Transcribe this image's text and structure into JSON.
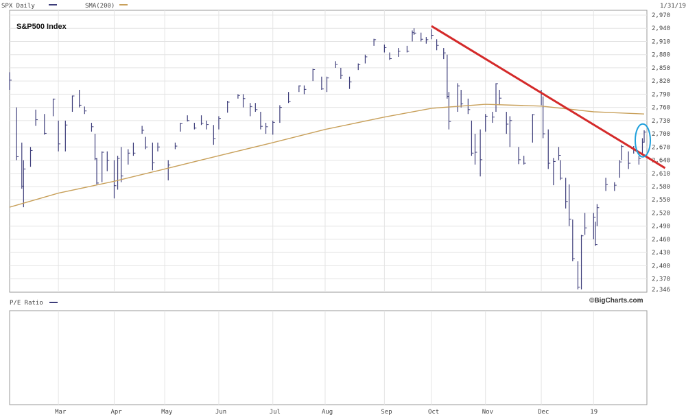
{
  "header": {
    "series1_label": "SPX Daily",
    "series2_label": "SMA(200)",
    "date_label": "1/31/19",
    "series1_color": "#3d3d7a",
    "series2_color": "#c8a05a"
  },
  "lower_panel": {
    "label": "P/E Ratio",
    "label_color": "#3d3d7a"
  },
  "credit": "©BigCharts.com",
  "chart_data": {
    "type": "line",
    "title": "S&P500 Index",
    "months": [
      "Mar",
      "Apr",
      "May",
      "Jun",
      "Jul",
      "Aug",
      "Sep",
      "Oct",
      "Nov",
      "Dec",
      "19"
    ],
    "yticks": [
      2970,
      2940,
      2910,
      2880,
      2850,
      2820,
      2790,
      2760,
      2730,
      2700,
      2670,
      2640,
      2610,
      2580,
      2550,
      2520,
      2490,
      2460,
      2430,
      2400,
      2370,
      2346
    ],
    "ylim": [
      2346,
      2970
    ],
    "grid": true,
    "series": [
      {
        "name": "SPX Daily",
        "style": "ohlc-bars",
        "color": "#3d3d7a",
        "points": [
          [
            "2018-02-01",
            2822,
            2840,
            2800
          ],
          [
            "2018-02-05",
            2648,
            2760,
            2640
          ],
          [
            "2018-02-08",
            2581,
            2680,
            2575
          ],
          [
            "2018-02-09",
            2620,
            2640,
            2533
          ],
          [
            "2018-02-13",
            2662,
            2670,
            2625
          ],
          [
            "2018-02-16",
            2732,
            2755,
            2718
          ],
          [
            "2018-02-21",
            2701,
            2745,
            2698
          ],
          [
            "2018-02-26",
            2779,
            2780,
            2740
          ],
          [
            "2018-03-01",
            2677,
            2730,
            2660
          ],
          [
            "2018-03-05",
            2720,
            2730,
            2660
          ],
          [
            "2018-03-09",
            2786,
            2787,
            2750
          ],
          [
            "2018-03-13",
            2765,
            2800,
            2760
          ],
          [
            "2018-03-16",
            2752,
            2762,
            2745
          ],
          [
            "2018-03-20",
            2716,
            2725,
            2705
          ],
          [
            "2018-03-22",
            2643,
            2700,
            2640
          ],
          [
            "2018-03-23",
            2588,
            2645,
            2585
          ],
          [
            "2018-03-26",
            2658,
            2660,
            2590
          ],
          [
            "2018-03-29",
            2640,
            2660,
            2615
          ],
          [
            "2018-04-02",
            2582,
            2640,
            2553
          ],
          [
            "2018-04-04",
            2644,
            2650,
            2573
          ],
          [
            "2018-04-06",
            2604,
            2670,
            2590
          ],
          [
            "2018-04-10",
            2656,
            2665,
            2630
          ],
          [
            "2018-04-13",
            2656,
            2680,
            2650
          ],
          [
            "2018-04-18",
            2708,
            2718,
            2700
          ],
          [
            "2018-04-20",
            2670,
            2693,
            2665
          ],
          [
            "2018-04-24",
            2634,
            2680,
            2617
          ],
          [
            "2018-04-27",
            2670,
            2680,
            2660
          ],
          [
            "2018-05-03",
            2629,
            2640,
            2594
          ],
          [
            "2018-05-07",
            2672,
            2680,
            2665
          ],
          [
            "2018-05-10",
            2723,
            2725,
            2705
          ],
          [
            "2018-05-14",
            2730,
            2742,
            2728
          ],
          [
            "2018-05-18",
            2713,
            2725,
            2710
          ],
          [
            "2018-05-22",
            2724,
            2742,
            2720
          ],
          [
            "2018-05-25",
            2721,
            2730,
            2710
          ],
          [
            "2018-05-29",
            2689,
            2720,
            2675
          ],
          [
            "2018-06-01",
            2735,
            2740,
            2710
          ],
          [
            "2018-06-06",
            2772,
            2775,
            2748
          ],
          [
            "2018-06-12",
            2787,
            2790,
            2780
          ],
          [
            "2018-06-15",
            2780,
            2790,
            2760
          ],
          [
            "2018-06-19",
            2762,
            2770,
            2740
          ],
          [
            "2018-06-22",
            2755,
            2770,
            2750
          ],
          [
            "2018-06-25",
            2717,
            2750,
            2710
          ],
          [
            "2018-06-28",
            2716,
            2725,
            2700
          ],
          [
            "2018-07-02",
            2726,
            2730,
            2698
          ],
          [
            "2018-07-06",
            2760,
            2765,
            2725
          ],
          [
            "2018-07-11",
            2774,
            2795,
            2770
          ],
          [
            "2018-07-17",
            2809,
            2810,
            2795
          ],
          [
            "2018-07-20",
            2801,
            2810,
            2790
          ],
          [
            "2018-07-25",
            2846,
            2848,
            2820
          ],
          [
            "2018-07-30",
            2802,
            2830,
            2800
          ],
          [
            "2018-08-02",
            2827,
            2830,
            2795
          ],
          [
            "2018-08-07",
            2858,
            2865,
            2850
          ],
          [
            "2018-08-10",
            2833,
            2850,
            2825
          ],
          [
            "2018-08-15",
            2818,
            2830,
            2802
          ],
          [
            "2018-08-20",
            2857,
            2860,
            2845
          ],
          [
            "2018-08-24",
            2875,
            2880,
            2860
          ],
          [
            "2018-08-29",
            2914,
            2916,
            2900
          ],
          [
            "2018-09-04",
            2896,
            2903,
            2885
          ],
          [
            "2018-09-07",
            2871,
            2885,
            2868
          ],
          [
            "2018-09-12",
            2888,
            2895,
            2875
          ],
          [
            "2018-09-17",
            2888,
            2900,
            2885
          ],
          [
            "2018-09-20",
            2930,
            2935,
            2910
          ],
          [
            "2018-09-21",
            2929,
            2940,
            2925
          ],
          [
            "2018-09-25",
            2915,
            2930,
            2910
          ],
          [
            "2018-09-28",
            2914,
            2920,
            2905
          ],
          [
            "2018-10-01",
            2924,
            2938,
            2915
          ],
          [
            "2018-10-04",
            2901,
            2915,
            2890
          ],
          [
            "2018-10-08",
            2884,
            2895,
            2870
          ],
          [
            "2018-10-10",
            2785,
            2880,
            2780
          ],
          [
            "2018-10-11",
            2728,
            2795,
            2710
          ],
          [
            "2018-10-16",
            2809,
            2815,
            2750
          ],
          [
            "2018-10-18",
            2768,
            2800,
            2760
          ],
          [
            "2018-10-22",
            2755,
            2780,
            2745
          ],
          [
            "2018-10-24",
            2656,
            2730,
            2650
          ],
          [
            "2018-10-26",
            2658,
            2700,
            2630
          ],
          [
            "2018-10-29",
            2641,
            2710,
            2603
          ],
          [
            "2018-11-01",
            2740,
            2745,
            2705
          ],
          [
            "2018-11-05",
            2738,
            2750,
            2725
          ],
          [
            "2018-11-07",
            2814,
            2815,
            2750
          ],
          [
            "2018-11-09",
            2781,
            2800,
            2765
          ],
          [
            "2018-11-13",
            2722,
            2750,
            2700
          ],
          [
            "2018-11-15",
            2730,
            2740,
            2670
          ],
          [
            "2018-11-20",
            2641,
            2670,
            2631
          ],
          [
            "2018-11-23",
            2633,
            2650,
            2630
          ],
          [
            "2018-11-28",
            2743,
            2745,
            2680
          ],
          [
            "2018-12-03",
            2790,
            2800,
            2765
          ],
          [
            "2018-12-04",
            2700,
            2785,
            2690
          ],
          [
            "2018-12-07",
            2633,
            2710,
            2620
          ],
          [
            "2018-12-10",
            2637,
            2645,
            2583
          ],
          [
            "2018-12-13",
            2651,
            2670,
            2640
          ],
          [
            "2018-12-14",
            2599,
            2640,
            2595
          ],
          [
            "2018-12-17",
            2546,
            2600,
            2530
          ],
          [
            "2018-12-19",
            2506,
            2585,
            2490
          ],
          [
            "2018-12-21",
            2416,
            2505,
            2410
          ],
          [
            "2018-12-24",
            2351,
            2410,
            2346
          ],
          [
            "2018-12-26",
            2468,
            2470,
            2346
          ],
          [
            "2018-12-28",
            2486,
            2520,
            2470
          ],
          [
            "2019-01-02",
            2510,
            2520,
            2460
          ],
          [
            "2019-01-03",
            2448,
            2500,
            2445
          ],
          [
            "2019-01-04",
            2532,
            2540,
            2490
          ],
          [
            "2019-01-09",
            2585,
            2600,
            2570
          ],
          [
            "2019-01-14",
            2583,
            2590,
            2570
          ],
          [
            "2019-01-17",
            2636,
            2640,
            2600
          ],
          [
            "2019-01-18",
            2671,
            2675,
            2640
          ],
          [
            "2019-01-22",
            2633,
            2660,
            2620
          ],
          [
            "2019-01-25",
            2665,
            2672,
            2655
          ],
          [
            "2019-01-28",
            2644,
            2650,
            2630
          ],
          [
            "2019-01-30",
            2681,
            2690,
            2655
          ],
          [
            "2019-01-31",
            2704,
            2708,
            2680
          ]
        ]
      },
      {
        "name": "SMA(200)",
        "style": "line",
        "color": "#c8a05a",
        "points": [
          [
            "2018-02-01",
            2533
          ],
          [
            "2018-03-01",
            2565
          ],
          [
            "2018-04-02",
            2592
          ],
          [
            "2018-05-01",
            2620
          ],
          [
            "2018-06-01",
            2650
          ],
          [
            "2018-07-02",
            2680
          ],
          [
            "2018-08-01",
            2710
          ],
          [
            "2018-09-04",
            2738
          ],
          [
            "2018-10-01",
            2758
          ],
          [
            "2018-11-01",
            2767
          ],
          [
            "2018-12-03",
            2763
          ],
          [
            "2019-01-02",
            2750
          ],
          [
            "2019-01-31",
            2745
          ]
        ]
      }
    ],
    "annotations": [
      {
        "kind": "trendline",
        "color": "#d42a2a",
        "from": [
          "2018-10-01",
          2945
        ],
        "to": [
          "2019-02-12",
          2622
        ]
      },
      {
        "kind": "ellipse",
        "color": "#1fa0dc",
        "center": [
          "2019-01-31",
          2685
        ]
      }
    ]
  }
}
